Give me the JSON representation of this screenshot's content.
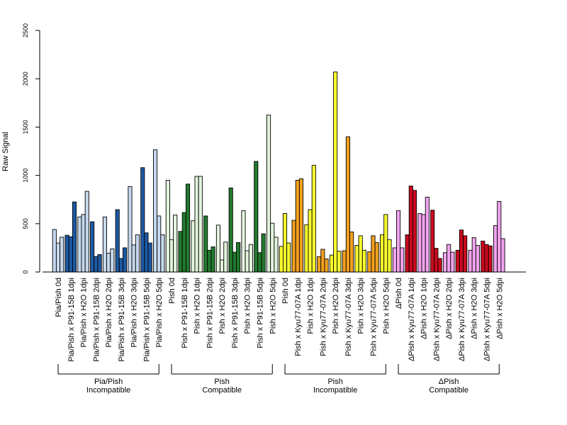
{
  "chart_data": {
    "type": "bar",
    "ylabel": "Raw Signal",
    "ylim": [
      0,
      2500
    ],
    "y_ticks": [
      0,
      500,
      1000,
      1500,
      2000,
      2500
    ],
    "grid": false,
    "legend": "none",
    "bars_per_category": 3,
    "categories": [
      "Pia/Pish 0d",
      "Pia/Pish x P91-15B 1dpi",
      "Pia/Pish x H2O 1dpi",
      "Pia/Pish x P91-15B 2dpi",
      "Pia/Pish x H2O 2dpi",
      "Pia/Pish x P91-15B 3dpi",
      "Pia/Pish x H2O 3dpi",
      "Pia/Pish x P91-15B 5dpi",
      "Pia/Pish x H2O 5dpi",
      "Pish 0d",
      "Pish x P91-15B 1dpi",
      "Pish x H2O 1dpi",
      "Pish x P91-15B 2dpi",
      "Pish x H2O 2dpi",
      "Pish x P91-15B 3dpi",
      "Pish x H2O 3dpi",
      "Pish x P91-15B 5dpi",
      "Pish x H2O 5dpi",
      "Pish 0d",
      "Pish x Kyu77-07A 1dpi",
      "Pish x H2O 1dpi",
      "Pish x Kyu77-07A 2dpi",
      "Pish x H2O 2dpi",
      "Pish x Kyu77-07A 3dpi",
      "Pish x H2O 3dpi",
      "Pish x Kyu77-07A 5dpi",
      "Pish x H2O 5dpi",
      "ΔPish 0d",
      "ΔPish x Kyu77-07A 1dpi",
      "ΔPish x H2O 1dpi",
      "ΔPish x Kyu77-07A 2dpi",
      "ΔPish x H2O 2dpi",
      "ΔPish x Kyu77-07A 3dpi",
      "ΔPish x H2O 3dpi",
      "ΔPish x Kyu77-07A 5dpi",
      "ΔPish x H2O 5dpi"
    ],
    "values": [
      [
        440,
        300,
        360
      ],
      [
        380,
        365,
        725
      ],
      [
        570,
        595,
        835
      ],
      [
        520,
        160,
        180
      ],
      [
        570,
        195,
        240
      ],
      [
        645,
        140,
        250
      ],
      [
        885,
        280,
        385
      ],
      [
        1080,
        405,
        300
      ],
      [
        1265,
        580,
        385
      ],
      [
        950,
        335,
        590
      ],
      [
        420,
        615,
        910
      ],
      [
        530,
        990,
        990
      ],
      [
        580,
        225,
        260
      ],
      [
        485,
        125,
        310
      ],
      [
        870,
        205,
        305
      ],
      [
        635,
        220,
        285
      ],
      [
        1145,
        200,
        395
      ],
      [
        1625,
        505,
        360
      ],
      [
        265,
        605,
        300
      ],
      [
        535,
        950,
        965
      ],
      [
        490,
        645,
        1105
      ],
      [
        160,
        235,
        135
      ],
      [
        175,
        2070,
        215
      ],
      [
        220,
        1400,
        415
      ],
      [
        275,
        375,
        225
      ],
      [
        210,
        375,
        305
      ],
      [
        385,
        595,
        335
      ],
      [
        250,
        635,
        250
      ],
      [
        385,
        890,
        845
      ],
      [
        605,
        595,
        775
      ],
      [
        640,
        245,
        140
      ],
      [
        200,
        285,
        205
      ],
      [
        225,
        435,
        375
      ],
      [
        225,
        355,
        275
      ],
      [
        320,
        285,
        270
      ],
      [
        480,
        730,
        345
      ]
    ],
    "bar_colors": [
      "#c6d9ee",
      "#1d5aa4",
      "#c6d9ee",
      "#1d5aa4",
      "#c6d9ee",
      "#1d5aa4",
      "#c6d9ee",
      "#1d5aa4",
      "#c6d9ee",
      "#e3f5dd",
      "#237a2e",
      "#e3f5dd",
      "#237a2e",
      "#e3f5dd",
      "#237a2e",
      "#e3f5dd",
      "#237a2e",
      "#e3f5dd",
      "#fbff2e",
      "#f5a11e",
      "#fbff2e",
      "#f5a11e",
      "#fbff2e",
      "#f5a11e",
      "#fbff2e",
      "#f5a11e",
      "#fbff2e",
      "#f3a4ef",
      "#cc0a1e",
      "#f3a4ef",
      "#cc0a1e",
      "#f3a4ef",
      "#cc0a1e",
      "#f3a4ef",
      "#cc0a1e",
      "#f3a4ef"
    ],
    "groups": [
      {
        "label_line1": "Pia/Pish",
        "label_line2": "Incompatible",
        "first": 0,
        "last": 8
      },
      {
        "label_line1": "Pish",
        "label_line2": "Compatible",
        "first": 9,
        "last": 17
      },
      {
        "label_line1": "Pish",
        "label_line2": "Incompatible",
        "first": 18,
        "last": 26
      },
      {
        "label_line1": "ΔPish",
        "label_line2": "Compatible",
        "first": 27,
        "last": 35
      }
    ]
  }
}
